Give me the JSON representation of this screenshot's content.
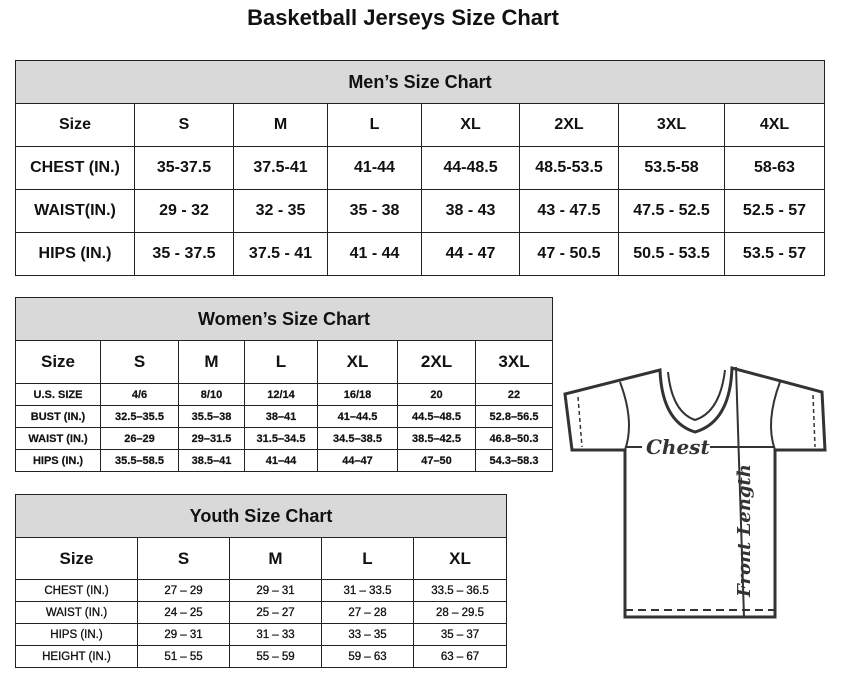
{
  "title": "Basketball Jerseys Size Chart",
  "men": {
    "title": "Men’s Size Chart",
    "header": [
      "Size",
      "S",
      "M",
      "L",
      "XL",
      "2XL",
      "3XL",
      "4XL"
    ],
    "rows": [
      [
        "CHEST (IN.)",
        "35-37.5",
        "37.5-41",
        "41-44",
        "44-48.5",
        "48.5-53.5",
        "53.5-58",
        "58-63"
      ],
      [
        "WAIST(IN.)",
        "29 - 32",
        "32 - 35",
        "35 - 38",
        "38 - 43",
        "43 - 47.5",
        "47.5 - 52.5",
        "52.5 - 57"
      ],
      [
        "HIPS (IN.)",
        "35 - 37.5",
        "37.5 - 41",
        "41 - 44",
        "44 - 47",
        "47 - 50.5",
        "50.5 - 53.5",
        "53.5 - 57"
      ]
    ]
  },
  "women": {
    "title": "Women’s Size Chart",
    "header": [
      "Size",
      "S",
      "M",
      "L",
      "XL",
      "2XL",
      "3XL"
    ],
    "rows": [
      [
        "U.S. SIZE",
        "4/6",
        "8/10",
        "12/14",
        "16/18",
        "20",
        "22"
      ],
      [
        "BUST (IN.)",
        "32.5–35.5",
        "35.5–38",
        "38–41",
        "41–44.5",
        "44.5–48.5",
        "52.8–56.5"
      ],
      [
        "WAIST (IN.)",
        "26–29",
        "29–31.5",
        "31.5–34.5",
        "34.5–38.5",
        "38.5–42.5",
        "46.8–50.3"
      ],
      [
        "HIPS (IN.)",
        "35.5–58.5",
        "38.5–41",
        "41–44",
        "44–47",
        "47–50",
        "54.3–58.3"
      ]
    ]
  },
  "youth": {
    "title": "Youth Size Chart",
    "header": [
      "Size",
      "S",
      "M",
      "L",
      "XL"
    ],
    "rows": [
      [
        "CHEST (IN.)",
        "27 – 29",
        "29 – 31",
        "31 – 33.5",
        "33.5 – 36.5"
      ],
      [
        "WAIST (IN.)",
        "24 – 25",
        "25 – 27",
        "27 – 28",
        "28 – 29.5"
      ],
      [
        "HIPS (IN.)",
        "29 – 31",
        "31 – 33",
        "33 – 35",
        "35 – 37"
      ],
      [
        "HEIGHT (IN.)",
        "51 – 55",
        "55 – 59",
        "59 – 63",
        "63 – 67"
      ]
    ]
  },
  "diagram": {
    "chest_label": "Chest",
    "length_label": "Front Length"
  }
}
